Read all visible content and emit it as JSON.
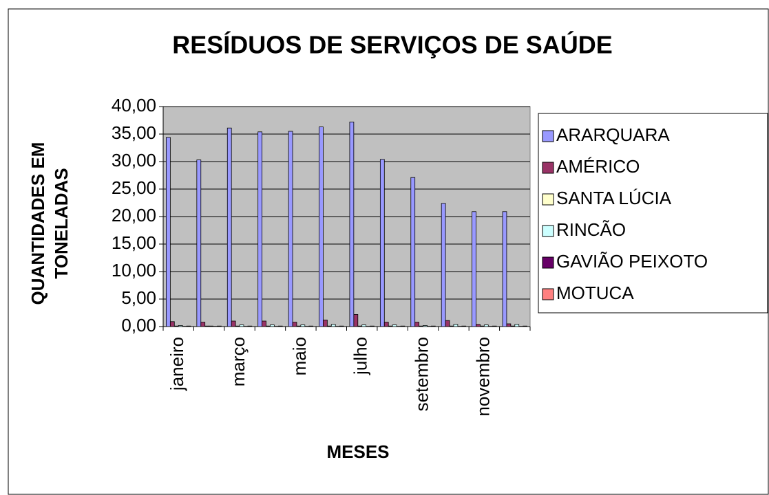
{
  "chart_data": {
    "type": "bar",
    "title": "RESÍDUOS DE SERVIÇOS DE SAÚDE",
    "ylabel": [
      "QUANTIDADES EM",
      "TONELADAS"
    ],
    "xlabel": "MESES",
    "categories": [
      "janeiro",
      null,
      "março",
      null,
      "maio",
      null,
      "julho",
      null,
      "setembro",
      null,
      "novembro",
      null
    ],
    "series": [
      {
        "name": "ARARQUARA",
        "color": "#9999ff",
        "values": [
          34.4,
          30.3,
          36.1,
          35.4,
          35.5,
          36.3,
          37.2,
          30.4,
          27.1,
          22.4,
          20.9,
          20.9
        ]
      },
      {
        "name": "AMÉRICO",
        "color": "#993366",
        "values": [
          0.9,
          0.8,
          1.0,
          1.0,
          0.8,
          1.2,
          2.2,
          0.8,
          0.8,
          1.1,
          0.4,
          0.5
        ]
      },
      {
        "name": "SANTA LÚCIA",
        "color": "#ffffcc",
        "values": [
          0.1,
          0.1,
          0.1,
          0.1,
          0.1,
          0.1,
          0.1,
          0.1,
          0.1,
          0.1,
          0.1,
          0.1
        ]
      },
      {
        "name": "RINCÃO",
        "color": "#ccffff",
        "values": [
          0.2,
          0.1,
          0.3,
          0.3,
          0.3,
          0.4,
          0.3,
          0.3,
          0.2,
          0.4,
          0.3,
          0.4
        ]
      },
      {
        "name": "GAVIÃO PEIXOTO",
        "color": "#660066",
        "values": [
          0.05,
          0.05,
          0.05,
          0.05,
          0.05,
          0.05,
          0.05,
          0.05,
          0.05,
          0.05,
          0.05,
          0.05
        ]
      },
      {
        "name": "MOTUCA",
        "color": "#ff8080",
        "values": [
          0.1,
          0.1,
          0.1,
          0.1,
          0.1,
          0.1,
          0.1,
          0.1,
          0.1,
          0.1,
          0.1,
          0.1
        ]
      }
    ],
    "ylim": [
      0,
      40
    ],
    "yticks": [
      {
        "value": 0,
        "label": "0,00"
      },
      {
        "value": 5,
        "label": "5,00"
      },
      {
        "value": 10,
        "label": "10,00"
      },
      {
        "value": 15,
        "label": "15,00"
      },
      {
        "value": 20,
        "label": "20,00"
      },
      {
        "value": 25,
        "label": "25,00"
      },
      {
        "value": 30,
        "label": "30,00"
      },
      {
        "value": 35,
        "label": "35,00"
      },
      {
        "value": 40,
        "label": "40,00"
      }
    ],
    "grid": true,
    "legend": "right"
  }
}
